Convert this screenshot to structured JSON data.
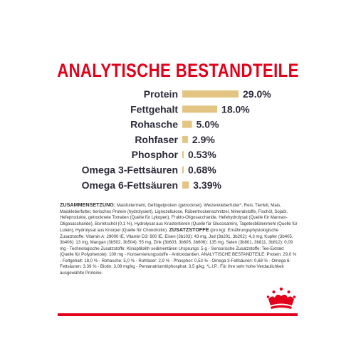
{
  "title": "ANALYTISCHE BESTANDTEILE",
  "colors": {
    "accent": "#e2001a",
    "bar": "#e3c483",
    "text": "#2b2b3a"
  },
  "chart_data": {
    "type": "bar",
    "orientation": "horizontal",
    "categories": [
      "Protein",
      "Fettgehalt",
      "Rohasche",
      "Rohfaser",
      "Phosphor",
      "Omega 3-Fettsäuren",
      "Omega 6-Fettsäuren"
    ],
    "values": [
      29.0,
      18.0,
      5.0,
      2.9,
      0.53,
      0.68,
      3.39
    ],
    "value_labels": [
      "29.0%",
      "18.0%",
      "5.0%",
      "2.9%",
      "0.53%",
      "0.68%",
      "3.39%"
    ],
    "xlim": [
      0,
      29.0
    ]
  },
  "description": {
    "composition_heading": "ZUSAMMENSETZUNG:",
    "composition": "Maisfuttermehl, Geflügelprotein (getrocknet), Weizenkleberfutter*, Reis, Tierfett, Mais, Maiskleberfutter, tierisches Protein (hydrolysiert), Lignozellulose, Rübentrockenschnitzel, Mineralstoffe, Fischöl, Sojaöl, Hefeprodukte, getrocknete Tomaten (Quelle für Lykopen), Frukto-Oligosaccharide, Hefehydrolysat (Quelle für Mannan-Oligosaccharide), Borretschöl (0,1 %), Hydrolysat aus Krustentieren (Quelle für Glucosamin), Tagetesblütenmehl (Quelle für Lutein), Hydrolysat aus Knorpel (Quelle für Chondroitin).",
    "additives_heading": "ZUSATZSTOFFE",
    "additives": "(pro kg): Ernährungsphysiologische Zusatzstoffe: Vitamin A: 29000 IE, Vitamin D3: 800 IE, Eisen (3b103): 43 mg, Jod (3b201, 3b202): 4,3 mg, Kupfer (3b405, 3b406): 13 mg, Mangan (3b502, 3b504): 55 mg, Zink (3b603, 3b605, 3b606): 135 mg, Selen (3b801, 3b811, 3b812): 0,09 mg - Technologische Zusatzstoffe: Klinoptilolith sedimentären Ursprungs: 5 g - Sensorische Zusatzstoffe: Tee-Extrakt (Quelle für Polyphenole): 100 mg - Konservierungsstoffe - Antioxidantien.",
    "analysis": "ANALYTISCHE BESTANDTEILE: Protein: 29,0 % - Fettgehalt: 18,0 % - Rohasche: 5,0 % - Rohfaser: 2,9 % - Phosphor: 0,53 % - Omega 3-Fettsäuren: 0,68 % - Omega 6-Fettsäuren: 3,39 % - Biotin: 3,08 mg/kg - Pentanatriumtriphosphat: 3,5 g/kg.",
    "footnote": "*L.I.P.: Für ihre sehr hohe Verdaulichkeit ausgewählte Proteine."
  },
  "logo": {
    "name": "crown-logo"
  }
}
